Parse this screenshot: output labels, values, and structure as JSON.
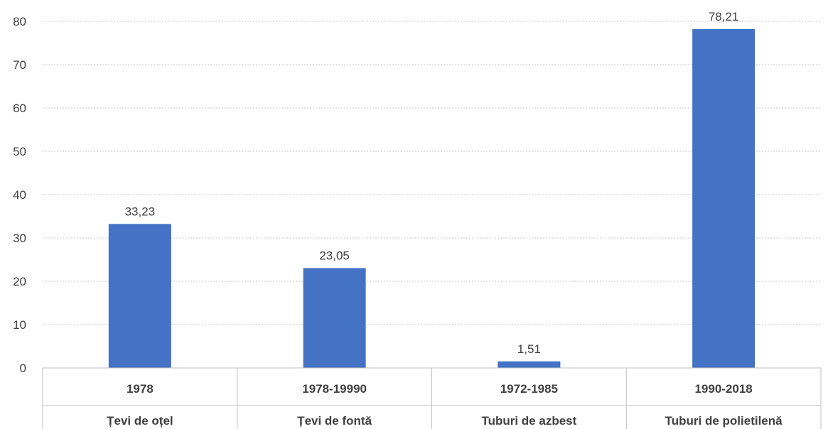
{
  "chart_data": {
    "type": "bar",
    "title": "",
    "xlabel": "",
    "ylabel": "",
    "ylim": [
      0,
      80
    ],
    "yticks": [
      0,
      10,
      20,
      30,
      40,
      50,
      60,
      70,
      80
    ],
    "grid": true,
    "legend": "none",
    "bar_color": "#4472C4",
    "categories": [
      {
        "period": "1978",
        "material": "Țevi de oțel"
      },
      {
        "period": "1978-19990",
        "material": "Țevi de fontă"
      },
      {
        "period": "1972-1985",
        "material": "Tuburi de azbest"
      },
      {
        "period": "1990-2018",
        "material": "Tuburi de polietilenă"
      }
    ],
    "values": [
      33.23,
      23.05,
      1.51,
      78.21
    ],
    "value_labels": [
      "33,23",
      "23,05",
      "1,51",
      "78,21"
    ]
  }
}
